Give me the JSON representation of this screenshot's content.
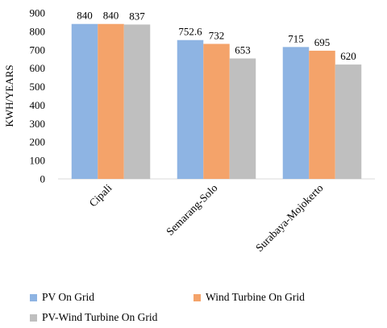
{
  "chart_data": {
    "type": "bar",
    "ylabel": "KWH/YEARS",
    "xlabel": "",
    "ylim": [
      0,
      900
    ],
    "yticks": [
      0,
      100,
      200,
      300,
      400,
      500,
      600,
      700,
      800,
      900
    ],
    "grid": false,
    "legend_position": "bottom",
    "categories": [
      "Cipali",
      "Semarang-Solo",
      "Surabaya-Mojokerto"
    ],
    "series": [
      {
        "name": "PV On Grid",
        "color": "#8eb4e3",
        "values": [
          840,
          752.6,
          715
        ],
        "labels": [
          "840",
          "752.6",
          "715"
        ]
      },
      {
        "name": "Wind Turbine On Grid",
        "color": "#f4a36a",
        "values": [
          840,
          732,
          695
        ],
        "labels": [
          "840",
          "732",
          "695"
        ]
      },
      {
        "name": "PV-Wind Turbine On Grid",
        "color": "#bfbfbf",
        "values": [
          837,
          653,
          620
        ],
        "labels": [
          "837",
          "653",
          "620"
        ]
      }
    ]
  }
}
